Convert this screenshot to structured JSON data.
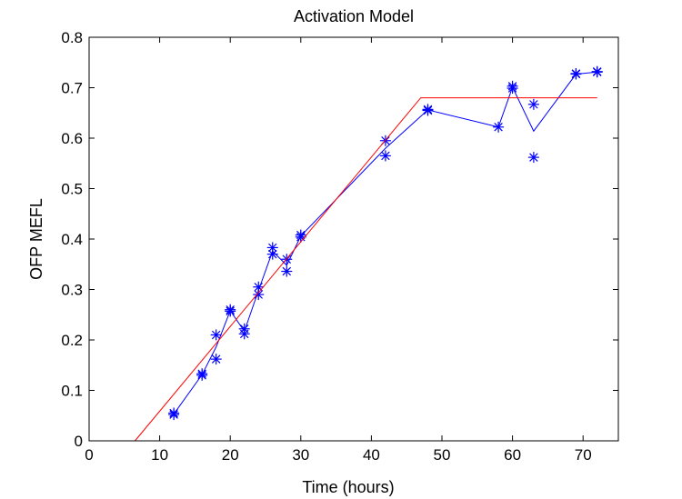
{
  "chart_data": {
    "type": "line",
    "title": "Activation Model",
    "xlabel": "Time (hours)",
    "ylabel": "OFP MEFL",
    "xlim": [
      0,
      75
    ],
    "ylim": [
      0,
      0.8
    ],
    "xticks": [
      0,
      10,
      20,
      30,
      40,
      50,
      60,
      70
    ],
    "yticks": [
      0,
      0.1,
      0.2,
      0.3,
      0.4,
      0.5,
      0.6,
      0.7,
      0.8
    ],
    "xtick_labels": [
      "0",
      "10",
      "20",
      "30",
      "40",
      "50",
      "60",
      "70"
    ],
    "ytick_labels": [
      "0",
      "0.1",
      "0.2",
      "0.3",
      "0.4",
      "0.5",
      "0.6",
      "0.7",
      "0.8"
    ],
    "grid": false,
    "legend": null,
    "series": [
      {
        "style": "markers",
        "marker": "asterisk",
        "color": "#0000ff",
        "x": [
          12,
          12,
          16,
          16,
          18,
          18,
          20,
          20,
          22,
          22,
          24,
          24,
          26,
          26,
          28,
          28,
          30,
          30,
          42,
          42,
          48,
          48,
          58,
          60,
          60,
          63,
          63,
          69,
          69,
          72,
          72
        ],
        "y": [
          0.052,
          0.055,
          0.13,
          0.133,
          0.21,
          0.162,
          0.26,
          0.257,
          0.222,
          0.212,
          0.305,
          0.29,
          0.383,
          0.37,
          0.36,
          0.336,
          0.408,
          0.404,
          0.595,
          0.565,
          0.657,
          0.655,
          0.622,
          0.703,
          0.699,
          0.667,
          0.562,
          0.728,
          0.727,
          0.732,
          0.731
        ]
      },
      {
        "style": "line",
        "color": "#0000ff",
        "x": [
          12,
          16,
          18,
          20,
          22,
          24,
          26,
          28,
          30,
          42,
          48,
          58,
          60,
          63,
          69,
          72
        ],
        "y": [
          0.053,
          0.131,
          0.186,
          0.258,
          0.217,
          0.298,
          0.376,
          0.348,
          0.406,
          0.58,
          0.656,
          0.622,
          0.701,
          0.614,
          0.727,
          0.731
        ]
      },
      {
        "style": "line",
        "color": "#ff0000",
        "x": [
          6.5,
          47,
          72
        ],
        "y": [
          0,
          0.68,
          0.68
        ]
      }
    ]
  }
}
